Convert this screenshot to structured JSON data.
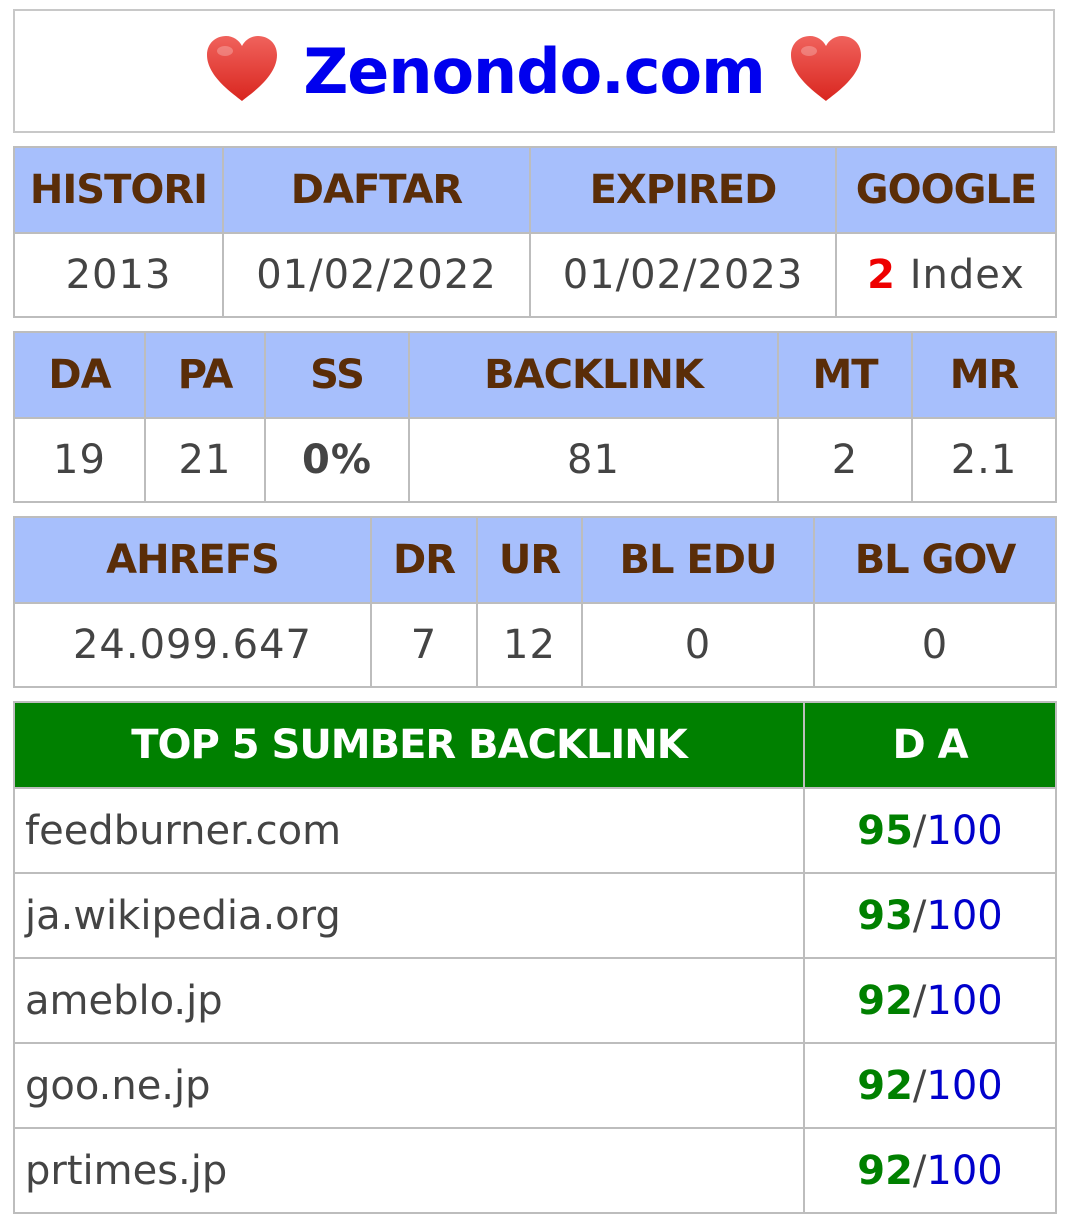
{
  "header": {
    "title": "Zenondo.com",
    "left_icon": "heart-icon",
    "right_icon": "heart-icon",
    "heart_color": "#e53935"
  },
  "table1": {
    "headers": [
      "HISTORI",
      "DAFTAR",
      "EXPIRED",
      "GOOGLE"
    ],
    "histori": "2013",
    "daftar": "01/02/2022",
    "expired": "01/02/2023",
    "google_count": "2",
    "google_label": "Index"
  },
  "table2": {
    "headers": [
      "DA",
      "PA",
      "SS",
      "BACKLINK",
      "MT",
      "MR"
    ],
    "da": "19",
    "pa": "21",
    "ss": "0%",
    "backlink": "81",
    "mt": "2",
    "mr": "2.1"
  },
  "table3": {
    "headers": [
      "AHREFS",
      "DR",
      "UR",
      "BL EDU",
      "BL GOV"
    ],
    "ahrefs": "24.099.647",
    "dr": "7",
    "ur": "12",
    "bl_edu": "0",
    "bl_gov": "0"
  },
  "top": {
    "header_source": "TOP 5 SUMBER BACKLINK",
    "header_da": "D A",
    "max": "100",
    "rows": [
      {
        "site": "feedburner.com",
        "da": "95"
      },
      {
        "site": "ja.wikipedia.org",
        "da": "93"
      },
      {
        "site": "ameblo.jp",
        "da": "92"
      },
      {
        "site": "goo.ne.jp",
        "da": "92"
      },
      {
        "site": "prtimes.jp",
        "da": "92"
      }
    ]
  },
  "colors": {
    "header_bg": "#a7bffc",
    "header_text": "#5a2d08",
    "top_header_bg": "#008000",
    "title_color": "#0000ee"
  }
}
